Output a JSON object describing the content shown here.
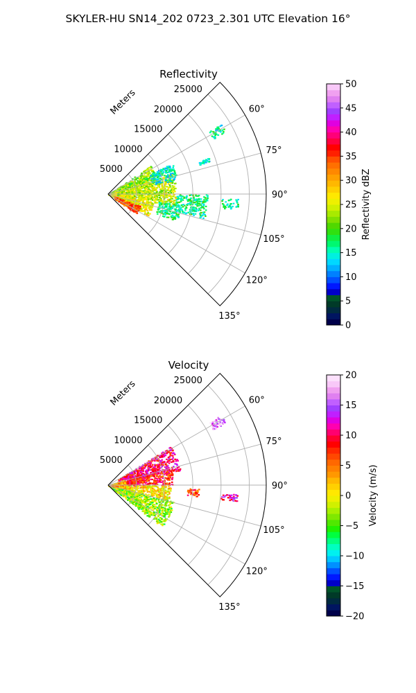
{
  "figure_title": "SKYLER-HU  SN14_202  0723_2.301 UTC Elevation 16°",
  "chart_data": [
    {
      "type": "polar-sector",
      "title": "Reflectivity",
      "radial_label": "Meters",
      "radial_ticks": [
        5000,
        10000,
        15000,
        20000,
        25000
      ],
      "radial_max": 28000,
      "angle_ticks": [
        "60°",
        "75°",
        "90°",
        "105°",
        "120°",
        "135°"
      ],
      "angle_tick_values": [
        60,
        75,
        90,
        105,
        120,
        135
      ],
      "angle_range": [
        45,
        135
      ],
      "colorbar": {
        "label": "Reflectivity dBZ",
        "min": 0,
        "max": 50,
        "ticks": [
          0,
          5,
          10,
          15,
          20,
          25,
          30,
          35,
          40,
          45,
          50
        ]
      },
      "echo_regions": [
        {
          "az": [
            56,
            72
          ],
          "r": [
            0,
            9000
          ],
          "v": 22
        },
        {
          "az": [
            72,
            100
          ],
          "r": [
            0,
            12000
          ],
          "v": 24
        },
        {
          "az": [
            100,
            118
          ],
          "r": [
            0,
            8000
          ],
          "v": 26
        },
        {
          "az": [
            110,
            125
          ],
          "r": [
            1000,
            6000
          ],
          "v": 34
        },
        {
          "az": [
            64,
            78
          ],
          "r": [
            8000,
            12500
          ],
          "v": 15
        },
        {
          "az": [
            98,
            112
          ],
          "r": [
            9000,
            13000
          ],
          "v": 17
        },
        {
          "az": [
            90,
            104
          ],
          "r": [
            12000,
            17500
          ],
          "v": 17
        },
        {
          "az": [
            70,
            72
          ],
          "r": [
            17000,
            19000
          ],
          "v": 14
        },
        {
          "az": [
            58,
            62
          ],
          "r": [
            21000,
            23500
          ],
          "v": 16
        },
        {
          "az": [
            92,
            97
          ],
          "r": [
            20000,
            23000
          ],
          "v": 16
        }
      ]
    },
    {
      "type": "polar-sector",
      "title": "Velocity",
      "radial_label": "Meters",
      "radial_ticks": [
        5000,
        10000,
        15000,
        20000,
        25000
      ],
      "radial_max": 28000,
      "angle_ticks": [
        "60°",
        "75°",
        "90°",
        "105°",
        "120°",
        "135°"
      ],
      "angle_tick_values": [
        60,
        75,
        90,
        105,
        120,
        135
      ],
      "angle_range": [
        45,
        135
      ],
      "colorbar": {
        "label": "Velocity (m/s)",
        "min": -20,
        "max": 20,
        "ticks": [
          -20,
          -15,
          -10,
          -5,
          0,
          5,
          10,
          15,
          20
        ]
      },
      "echo_regions": [
        {
          "az": [
            58,
            78
          ],
          "r": [
            2000,
            13000
          ],
          "v": 10
        },
        {
          "az": [
            76,
            90
          ],
          "r": [
            2000,
            11500
          ],
          "v": 8
        },
        {
          "az": [
            90,
            104
          ],
          "r": [
            1500,
            11000
          ],
          "v": 1
        },
        {
          "az": [
            104,
            128
          ],
          "r": [
            0,
            12000
          ],
          "v": -3
        },
        {
          "az": [
            70,
            100
          ],
          "r": [
            0,
            3000
          ],
          "v": 3
        },
        {
          "az": [
            92,
            97
          ],
          "r": [
            14000,
            16000
          ],
          "v": 7
        },
        {
          "az": [
            58,
            62
          ],
          "r": [
            21000,
            23500
          ],
          "v": 16
        },
        {
          "az": [
            94,
            97
          ],
          "r": [
            20000,
            23000
          ],
          "v": 12
        }
      ]
    }
  ]
}
